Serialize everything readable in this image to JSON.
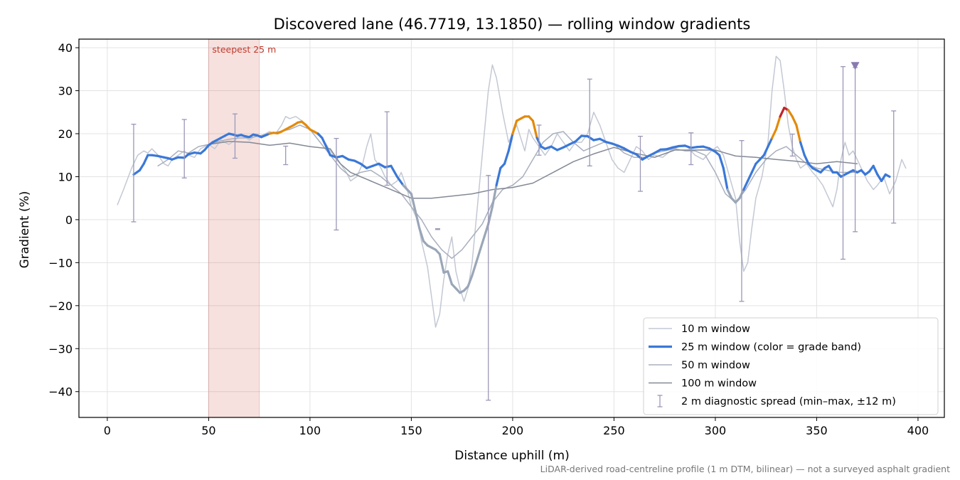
{
  "chart_data": {
    "type": "line",
    "title": "Discovered lane (46.7719, 13.1850) — rolling window gradients",
    "xlabel": "Distance uphill (m)",
    "ylabel": "Gradient (%)",
    "xlim": [
      -14,
      413
    ],
    "ylim": [
      -46,
      42
    ],
    "xticks": [
      0,
      50,
      100,
      150,
      200,
      250,
      300,
      350,
      400
    ],
    "yticks": [
      -40,
      -30,
      -20,
      -10,
      0,
      10,
      20,
      30,
      40
    ],
    "grid": true,
    "legend_placement": "lower-right",
    "footnote": "LiDAR-derived road-centreline profile (1 m DTM, bilinear) — not a surveyed asphalt gradient",
    "highlight": {
      "x0": 50,
      "x1": 75,
      "label": "steepest 25 m",
      "color": "#c0392b"
    },
    "peak_marker": {
      "x": 369,
      "y": 36,
      "color": "#8a7ab0"
    },
    "colors": {
      "w10": "#c3c8d3",
      "w50": "#a8afbd",
      "w100": "#838995",
      "band_low": "#9aa6b8",
      "band_mid": "#3a78d8",
      "band_high": "#e28a0c",
      "band_extreme": "#c0242c",
      "spread": "#9a98b8"
    },
    "series": [
      {
        "name": "10 m window",
        "key": "w10",
        "x": [
          5,
          8,
          12,
          15,
          18,
          20,
          22,
          25,
          28,
          30,
          32,
          35,
          38,
          40,
          43,
          46,
          50,
          53,
          56,
          60,
          63,
          66,
          70,
          73,
          76,
          80,
          83,
          86,
          88,
          90,
          93,
          96,
          98,
          100,
          103,
          106,
          108,
          110,
          113,
          115,
          118,
          120,
          123,
          126,
          128,
          130,
          132,
          135,
          137,
          140,
          143,
          145,
          148,
          150,
          153,
          155,
          158,
          160,
          162,
          164,
          166,
          168,
          170,
          172,
          174,
          176,
          178,
          180,
          182,
          184,
          186,
          188,
          190,
          192,
          195,
          198,
          200,
          202,
          204,
          206,
          208,
          210,
          213,
          216,
          219,
          222,
          225,
          228,
          231,
          234,
          237,
          240,
          243,
          246,
          249,
          252,
          255,
          258,
          261,
          264,
          267,
          270,
          274,
          278,
          282,
          286,
          290,
          294,
          298,
          301,
          304,
          307,
          310,
          312,
          314,
          316,
          318,
          320,
          323,
          326,
          328,
          330,
          332,
          334,
          336,
          338,
          340,
          342,
          345,
          348,
          350,
          353,
          356,
          358,
          360,
          362,
          364,
          366,
          368,
          370,
          372,
          375,
          378,
          380,
          383,
          386,
          389,
          392,
          394
        ],
        "y": [
          3.5,
          7,
          12,
          15,
          16,
          15.5,
          16.5,
          15,
          13,
          12.5,
          14,
          15,
          16,
          15,
          14.5,
          16.5,
          17.5,
          16.5,
          18.5,
          17.5,
          18.5,
          20,
          18.5,
          19.5,
          19.5,
          20.5,
          20,
          22,
          24,
          23.5,
          24,
          23,
          22,
          21,
          20,
          19,
          17.5,
          16,
          14,
          13,
          11,
          9,
          10,
          13,
          17,
          20,
          14,
          12,
          10,
          8,
          9,
          11,
          7,
          3,
          0,
          -5,
          -11,
          -18,
          -25,
          -22,
          -14,
          -8,
          -4,
          -12,
          -16,
          -19,
          -16,
          -10,
          0,
          10,
          20,
          30,
          36,
          33,
          25,
          18,
          20,
          22,
          19,
          16,
          21,
          19,
          17,
          15,
          17,
          20,
          18,
          16,
          18,
          18,
          20,
          25,
          22,
          18,
          14,
          12,
          11,
          14,
          17,
          16,
          14,
          15,
          14.5,
          16,
          17,
          17,
          15,
          14,
          16,
          17,
          15,
          10,
          5,
          -5,
          -12,
          -10,
          -2,
          5,
          10,
          18,
          30,
          38,
          37,
          30,
          22,
          17,
          14,
          12,
          13,
          11,
          10,
          8,
          5,
          3,
          7,
          14,
          18,
          15,
          16,
          14,
          12,
          9,
          7,
          8,
          10,
          6,
          9,
          14,
          12
        ]
      },
      {
        "name": "25 m window (color = grade band)",
        "key": "w25",
        "x": [
          13,
          16,
          18,
          20,
          22,
          25,
          28,
          30,
          32,
          35,
          38,
          40,
          43,
          46,
          48,
          50,
          52,
          54,
          56,
          58,
          60,
          62,
          64,
          66,
          68,
          70,
          72,
          74,
          76,
          78,
          80,
          82,
          84,
          86,
          88,
          90,
          92,
          94,
          96,
          98,
          100,
          102,
          104,
          106,
          108,
          110,
          113,
          116,
          119,
          122,
          125,
          128,
          131,
          134,
          137,
          140,
          143,
          146,
          148,
          150,
          152,
          154,
          156,
          158,
          160,
          162,
          164,
          166,
          168,
          170,
          172,
          174,
          176,
          178,
          180,
          182,
          184,
          186,
          188,
          190,
          192,
          194,
          196,
          198,
          200,
          202,
          204,
          206,
          208,
          210,
          212,
          214,
          216,
          219,
          222,
          225,
          228,
          231,
          234,
          237,
          240,
          243,
          246,
          249,
          252,
          255,
          258,
          261,
          264,
          267,
          270,
          273,
          276,
          279,
          282,
          285,
          288,
          291,
          294,
          297,
          300,
          302,
          304,
          306,
          308,
          310,
          312,
          314,
          316,
          318,
          320,
          322,
          324,
          326,
          328,
          330,
          332,
          334,
          336,
          338,
          340,
          342,
          344,
          346,
          348,
          350,
          352,
          354,
          356,
          358,
          360,
          362,
          364,
          366,
          368,
          370,
          372,
          374,
          376,
          378,
          380,
          382,
          384,
          386
        ],
        "y": [
          10.5,
          11.5,
          13,
          15,
          15,
          14.8,
          14.5,
          14.3,
          14,
          14.5,
          14.4,
          15.2,
          15.6,
          15.4,
          16.2,
          17.3,
          18,
          18.5,
          19,
          19.5,
          20,
          19.8,
          19.5,
          19.7,
          19.4,
          19.2,
          19.8,
          19.6,
          19.2,
          19.6,
          20,
          20.2,
          20.1,
          20.5,
          21,
          21.5,
          22,
          22.6,
          22.8,
          22,
          21,
          20.5,
          20,
          19,
          17,
          15,
          14.5,
          14.8,
          14,
          13.7,
          13,
          12,
          12.5,
          13,
          12.2,
          12.5,
          10,
          8,
          7,
          6,
          2,
          -2,
          -5,
          -6,
          -6.5,
          -7,
          -8,
          -12.3,
          -12,
          -15,
          -16,
          -17,
          -16.5,
          -15.5,
          -13,
          -10,
          -7,
          -4,
          -1,
          3,
          8,
          12,
          13,
          16,
          20,
          23,
          23.5,
          24,
          24,
          23,
          19,
          17,
          16.5,
          17,
          16.2,
          16.8,
          17.5,
          18.2,
          19.5,
          19.4,
          18.5,
          18.8,
          18.1,
          17.7,
          17.2,
          16.6,
          15.8,
          15.2,
          14,
          14.8,
          15.5,
          16.3,
          16.4,
          16.8,
          17.1,
          17.2,
          16.7,
          16.9,
          17,
          16.6,
          15.8,
          15,
          12,
          7,
          5,
          4,
          5,
          7,
          9,
          11,
          13,
          14,
          15,
          17,
          19,
          21,
          24,
          26,
          25.5,
          24,
          22,
          18,
          15,
          13,
          12,
          11.5,
          11,
          12,
          12.5,
          11,
          11,
          10,
          10.5,
          11,
          11.5,
          11,
          11.5,
          10.5,
          11.2,
          12.5,
          10.5,
          9,
          10.5,
          10
        ]
      },
      {
        "name": "50 m window",
        "key": "w50",
        "x": [
          25,
          30,
          35,
          40,
          45,
          50,
          55,
          60,
          65,
          70,
          75,
          80,
          85,
          90,
          95,
          100,
          105,
          110,
          115,
          120,
          125,
          130,
          135,
          140,
          145,
          150,
          155,
          160,
          165,
          170,
          175,
          180,
          185,
          190,
          195,
          200,
          205,
          210,
          215,
          220,
          225,
          230,
          235,
          240,
          245,
          250,
          255,
          260,
          265,
          270,
          275,
          280,
          285,
          290,
          295,
          300,
          305,
          310,
          315,
          320,
          325,
          330,
          335,
          340,
          345,
          350,
          355,
          360,
          365,
          370
        ],
        "y": [
          12.5,
          14,
          16,
          15.5,
          17,
          17.5,
          18.2,
          18.7,
          19,
          19,
          19.5,
          20,
          20.5,
          21,
          22,
          21,
          18,
          15,
          12,
          10,
          11,
          11.5,
          10,
          8,
          6,
          3,
          0,
          -4,
          -7,
          -9,
          -7,
          -4,
          -1,
          4,
          7,
          8,
          10,
          14,
          18,
          20,
          20.5,
          18,
          16,
          17,
          18,
          17.5,
          15.5,
          14.5,
          14.5,
          15.5,
          16,
          16.5,
          16,
          16,
          15,
          11,
          6,
          4,
          7,
          11,
          14,
          16,
          17,
          15,
          13,
          12,
          11.5,
          11,
          11,
          11
        ]
      },
      {
        "name": "100 m window",
        "key": "w100",
        "x": [
          50,
          60,
          70,
          80,
          90,
          100,
          110,
          115,
          120,
          125,
          130,
          140,
          150,
          160,
          170,
          180,
          190,
          200,
          210,
          220,
          230,
          240,
          250,
          260,
          270,
          280,
          290,
          300,
          310,
          320,
          330,
          340,
          350,
          360,
          370
        ],
        "y": [
          17.5,
          18.2,
          18,
          17.3,
          17.8,
          17,
          16.5,
          13,
          11,
          10,
          9,
          7,
          5,
          5,
          5.5,
          6,
          7,
          7.5,
          8.5,
          11,
          13.5,
          15.3,
          16.8,
          15.5,
          14.5,
          16.2,
          16.2,
          16.2,
          14.8,
          14.5,
          14,
          13.6,
          13,
          13.5,
          13
        ]
      },
      {
        "name": "2 m diagnostic spread (min–max, ±12 m)",
        "key": "spread",
        "points": [
          {
            "x": 13,
            "lo": -0.5,
            "hi": 22.2
          },
          {
            "x": 38,
            "lo": 9.7,
            "hi": 23.3
          },
          {
            "x": 63,
            "lo": 14.3,
            "hi": 24.6
          },
          {
            "x": 88,
            "lo": 12.8,
            "hi": 17.1
          },
          {
            "x": 113,
            "lo": -2.4,
            "hi": 18.9
          },
          {
            "x": 138,
            "lo": 8,
            "hi": 25.1
          },
          {
            "x": 163,
            "lo": -2.3,
            "hi": -2.1
          },
          {
            "x": 188,
            "lo": -42,
            "hi": 10.3
          },
          {
            "x": 213,
            "lo": 15,
            "hi": 22
          },
          {
            "x": 238,
            "lo": 12.5,
            "hi": 32.7
          },
          {
            "x": 263,
            "lo": 6.6,
            "hi": 19.4
          },
          {
            "x": 288,
            "lo": 12.8,
            "hi": 20.2
          },
          {
            "x": 313,
            "lo": -19,
            "hi": 18.4
          },
          {
            "x": 338,
            "lo": 14.8,
            "hi": 19.9
          },
          {
            "x": 363,
            "lo": -9.2,
            "hi": 35.6
          },
          {
            "x": 369,
            "lo": -2.8,
            "hi": 35.4
          },
          {
            "x": 388,
            "lo": -0.8,
            "hi": 25.3
          }
        ]
      }
    ]
  }
}
